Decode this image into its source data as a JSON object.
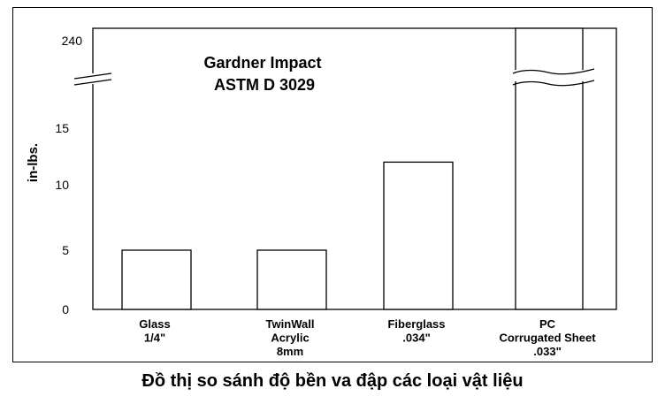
{
  "chart_data": {
    "type": "bar",
    "title": "Gardner Impact",
    "subtitle": "ASTM D 3029",
    "ylabel": "in-lbs.",
    "xlabel": "",
    "ylim": [
      0,
      15
    ],
    "axis_break": true,
    "yticks": [
      0,
      5,
      10,
      15
    ],
    "broken_tick": 240,
    "categories": [
      [
        "Glass",
        "1/4\""
      ],
      [
        "TwinWall",
        "Acrylic",
        "8mm"
      ],
      [
        "Fiberglass",
        ".034\""
      ],
      [
        "PC",
        "Corrugated Sheet",
        ".033\""
      ]
    ],
    "values": [
      5,
      5,
      12,
      240
    ],
    "bar_color": "#ffffff",
    "edge_color": "#000000",
    "grid": false,
    "legend": "none"
  },
  "caption": "Đồ thị so sánh độ bền va đập các loại vật liệu"
}
